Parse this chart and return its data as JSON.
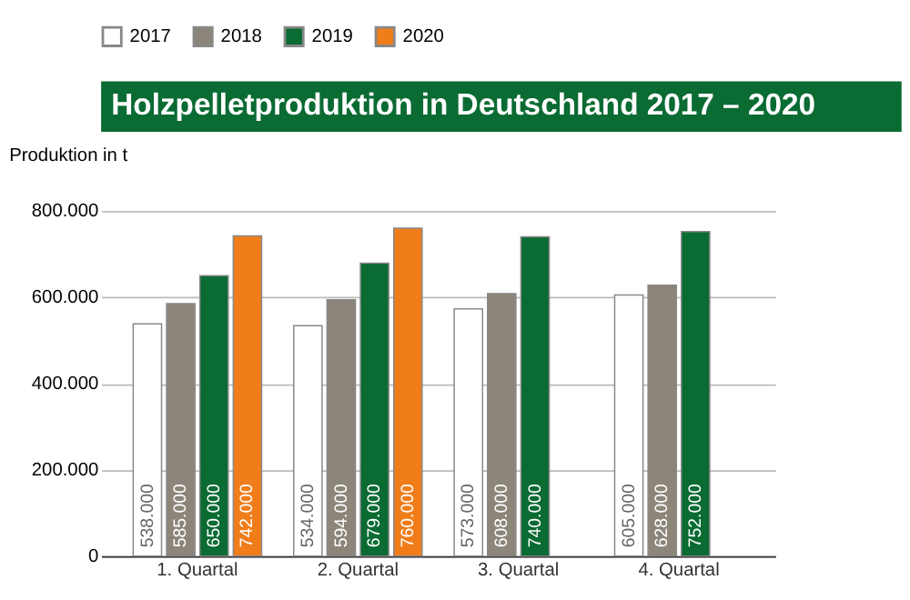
{
  "chart_data": {
    "type": "bar",
    "title": "Holzpelletproduktion in Deutschland 2017 – 2020",
    "ylabel": "Produktion in t",
    "categories": [
      "1. Quartal",
      "2. Quartal",
      "3. Quartal",
      "4. Quartal"
    ],
    "series": [
      {
        "name": "2017",
        "color": "#ffffff",
        "values": [
          538000,
          534000,
          573000,
          605000
        ],
        "value_labels": [
          "538.000",
          "534.000",
          "573.000",
          "605.000"
        ]
      },
      {
        "name": "2018",
        "color": "#8c8579",
        "values": [
          585000,
          594000,
          608000,
          628000
        ],
        "value_labels": [
          "585.000",
          "594.000",
          "608.000",
          "628.000"
        ]
      },
      {
        "name": "2019",
        "color": "#0a6b33",
        "values": [
          650000,
          679000,
          740000,
          752000
        ],
        "value_labels": [
          "650.000",
          "679.000",
          "740.000",
          "752.000"
        ]
      },
      {
        "name": "2020",
        "color": "#f07d1a",
        "values": [
          742000,
          760000,
          null,
          null
        ],
        "value_labels": [
          "742.000",
          "760.000",
          null,
          null
        ]
      }
    ],
    "ylim": [
      0,
      800000
    ],
    "yticks": [
      0,
      {
        "value": 200000,
        "label": "200.000"
      },
      {
        "value": 400000,
        "label": "400.000"
      },
      {
        "value": 600000,
        "label": "600.000"
      },
      {
        "value": 800000,
        "label": "800.000"
      }
    ],
    "grid": "y",
    "legend": "top"
  }
}
